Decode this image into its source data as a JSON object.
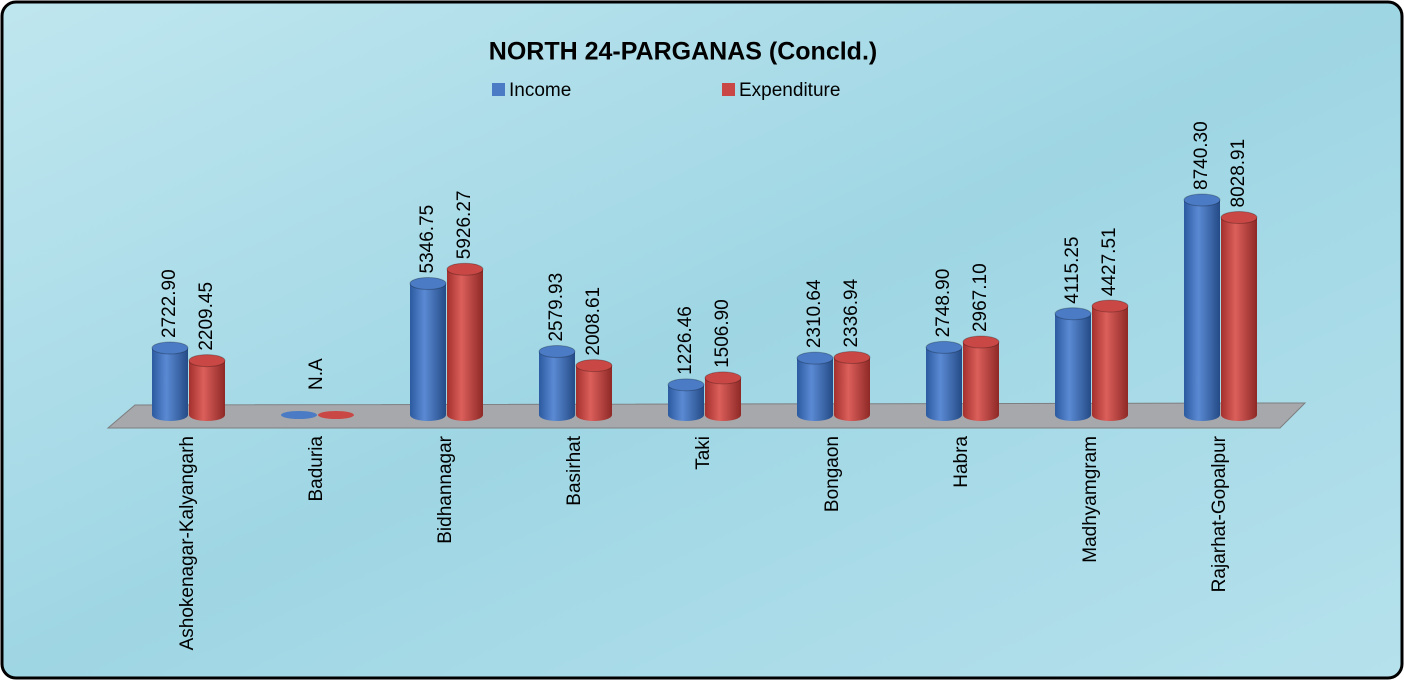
{
  "chart_data": {
    "type": "bar",
    "title": "NORTH 24-PARGANAS (Concld.)",
    "categories": [
      "Ashokenagar-Kalyangarh",
      "Baduria",
      "Bidhannagar",
      "Basirhat",
      "Taki",
      "Bongaon",
      "Habra",
      "Madhyamgram",
      "Rajarhat-Gopalpur"
    ],
    "series": [
      {
        "name": "Income",
        "color": "#4a7bc4",
        "values": [
          2722.9,
          null,
          5346.75,
          2579.93,
          1226.46,
          2310.64,
          2748.9,
          4115.25,
          8740.3
        ],
        "value_labels": [
          "2722.90",
          "N.A",
          "5346.75",
          "2579.93",
          "1226.46",
          "2310.64",
          "2748.90",
          "4115.25",
          "8740.30"
        ]
      },
      {
        "name": "Expenditure",
        "color": "#c94845",
        "values": [
          2209.45,
          null,
          5926.27,
          2008.61,
          1506.9,
          2336.94,
          2967.1,
          4427.51,
          8028.91
        ],
        "value_labels": [
          "2209.45",
          null,
          "5926.27",
          "2008.61",
          "1506.90",
          "2336.94",
          "2967.10",
          "4427.51",
          "8028.91"
        ]
      }
    ]
  }
}
